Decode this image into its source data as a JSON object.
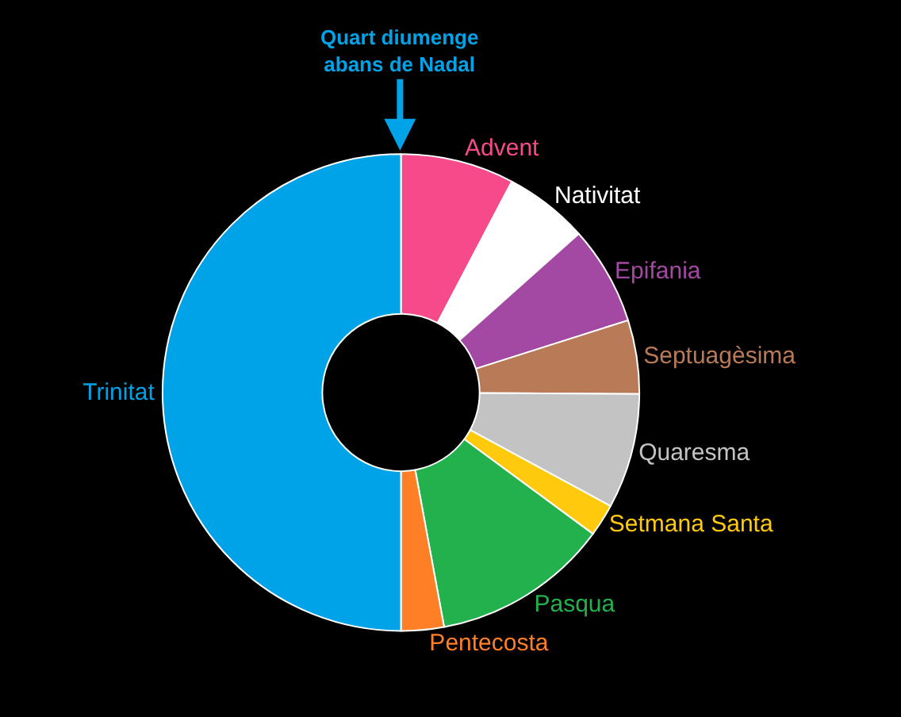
{
  "chart_data": {
    "type": "donut",
    "categories": [
      "Advent",
      "Nativitat",
      "Epifania",
      "Septuagèsima",
      "Quaresma",
      "Setmana Santa",
      "Pasqua",
      "Pentecosta",
      "Trinitat"
    ],
    "values": [
      7.7,
      5.7,
      6.7,
      5.0,
      7.8,
      2.2,
      12.0,
      2.9,
      50.0
    ],
    "colors": [
      "#f64a8a",
      "#ffffff",
      "#a349a4",
      "#b97a57",
      "#c3c3c3",
      "#ffc90e",
      "#22b14c",
      "#ff7f27",
      "#00a2e8"
    ],
    "legend": false,
    "annotations": [
      "Quart diumenge\nabans de Nadal"
    ]
  }
}
